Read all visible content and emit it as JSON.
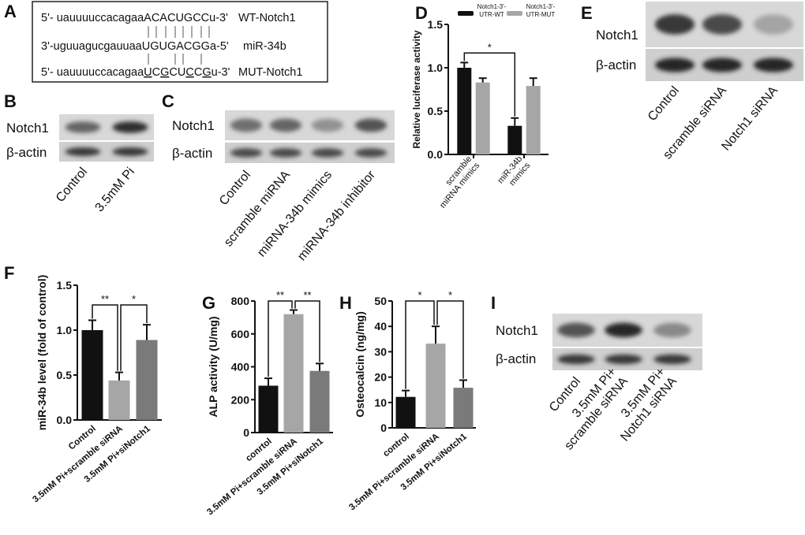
{
  "panel_labels": [
    "A",
    "B",
    "C",
    "D",
    "E",
    "F",
    "G",
    "H",
    "I"
  ],
  "panel_a": {
    "rows": [
      {
        "prefix": "5'- uauuuuccacagaa",
        "core": "ACACUGCC",
        "suffix": "u-3'",
        "name": "WT-Notch1"
      },
      {
        "prefix": "3'-uguuagucgauuaa",
        "core": "UGUGACGG",
        "suffix": "a-5'",
        "name": "miR-34b"
      },
      {
        "prefix": "5'- uauuuuccacagaa",
        "core": "UCGCUCCG",
        "suffix": "u-3'",
        "name": "MUT-Notch1"
      }
    ],
    "mut_underlined_positions": [
      1,
      3,
      6,
      8
    ]
  },
  "blots": {
    "B": {
      "rows": [
        "Notch1",
        "β-actin"
      ],
      "lanes": [
        "Control",
        "3.5mM Pi"
      ],
      "notch1_intensity": [
        0.55,
        0.85
      ],
      "actin_intensity": [
        0.8,
        0.8
      ]
    },
    "C": {
      "rows": [
        "Notch1",
        "β-actin"
      ],
      "lanes": [
        "Control",
        "scramble miRNA",
        "miRNA-34b mimics",
        "miRNA-34b inhibitor"
      ],
      "notch1_intensity": [
        0.5,
        0.55,
        0.3,
        0.65
      ],
      "actin_intensity": [
        0.7,
        0.7,
        0.7,
        0.7
      ]
    },
    "E": {
      "rows": [
        "Notch1",
        "β-actin"
      ],
      "lanes": [
        "Control",
        "scramble siRNA",
        "Notch1 siRNA"
      ],
      "notch1_intensity": [
        0.8,
        0.7,
        0.2
      ],
      "actin_intensity": [
        0.9,
        0.9,
        0.9
      ]
    },
    "I": {
      "rows": [
        "Notch1",
        "β-actin"
      ],
      "lanes": [
        [
          "Control"
        ],
        [
          "3.5mM Pi+",
          "scramble siRNA"
        ],
        [
          "3.5mM Pi+",
          "Notch1 siRNA"
        ]
      ],
      "notch1_intensity": [
        0.65,
        0.9,
        0.35
      ],
      "actin_intensity": [
        0.8,
        0.8,
        0.8
      ]
    }
  },
  "chart_data": [
    {
      "panel": "D",
      "type": "bar",
      "ylabel": "Relative luciferase activity",
      "ylim": [
        0,
        1.5
      ],
      "yticks": [
        "0.0",
        "0.5",
        "1.0",
        "1.5"
      ],
      "categories": [
        [
          "scramble",
          "miRNA mimics"
        ],
        [
          "miR-34b",
          "mimics"
        ]
      ],
      "series": [
        {
          "name": "Notch1-3'-UTR-WT",
          "legend_lines": [
            "Notch1-3'-",
            "UTR-WT"
          ],
          "values": [
            1.0,
            0.33
          ],
          "errors": [
            0.06,
            0.09
          ],
          "color": "#111111"
        },
        {
          "name": "Notch1-3'-UTR-MUT",
          "legend_lines": [
            "Notch1-3'-",
            "UTR-MUT"
          ],
          "values": [
            0.83,
            0.79
          ],
          "errors": [
            0.05,
            0.09
          ],
          "color": "#a6a6a6"
        }
      ],
      "significance": [
        {
          "from": "scramble WT",
          "to": "miR-34b WT",
          "label": "*"
        }
      ],
      "legend": "top"
    },
    {
      "panel": "F",
      "type": "bar",
      "ylabel": "miR-34b level (fold of control)",
      "ylim": [
        0,
        1.5
      ],
      "yticks": [
        "0.0",
        "0.5",
        "1.0",
        "1.5"
      ],
      "categories": [
        "Control",
        "3.5mM Pi+scramble siRNA",
        "3.5mM Pi+siNotch1"
      ],
      "values": [
        1.0,
        0.44,
        0.89
      ],
      "errors": [
        0.11,
        0.09,
        0.17
      ],
      "colors": [
        "#111111",
        "#a6a6a6",
        "#7a7a7a"
      ],
      "significance": [
        {
          "from": 0,
          "to": 1,
          "label": "**"
        },
        {
          "from": 1,
          "to": 2,
          "label": "*"
        }
      ]
    },
    {
      "panel": "G",
      "type": "bar",
      "ylabel": "ALP activity (U/mg)",
      "ylim": [
        0,
        800
      ],
      "yticks": [
        "0",
        "200",
        "400",
        "600",
        "800"
      ],
      "categories": [
        "conrtol",
        "3.5mM Pi+scramble siRNA",
        "3.5mM Pi+siNotch1"
      ],
      "values": [
        285,
        720,
        375
      ],
      "errors": [
        45,
        25,
        45
      ],
      "colors": [
        "#111111",
        "#a6a6a6",
        "#7a7a7a"
      ],
      "significance": [
        {
          "from": 0,
          "to": 1,
          "label": "**"
        },
        {
          "from": 1,
          "to": 2,
          "label": "**"
        }
      ]
    },
    {
      "panel": "H",
      "type": "bar",
      "ylabel": "Osteocalcin (ng/mg)",
      "ylim": [
        0,
        50
      ],
      "yticks": [
        "0",
        "10",
        "20",
        "30",
        "40",
        "50"
      ],
      "categories": [
        "control",
        "3.5mM Pi+scramble siRNA",
        "3.5mM Pi+siNotch1"
      ],
      "values": [
        12.2,
        33.2,
        15.8
      ],
      "errors": [
        2.5,
        6.8,
        3.0
      ],
      "colors": [
        "#111111",
        "#a6a6a6",
        "#7a7a7a"
      ],
      "significance": [
        {
          "from": 0,
          "to": 1,
          "label": "*"
        },
        {
          "from": 1,
          "to": 2,
          "label": "*"
        }
      ]
    }
  ]
}
